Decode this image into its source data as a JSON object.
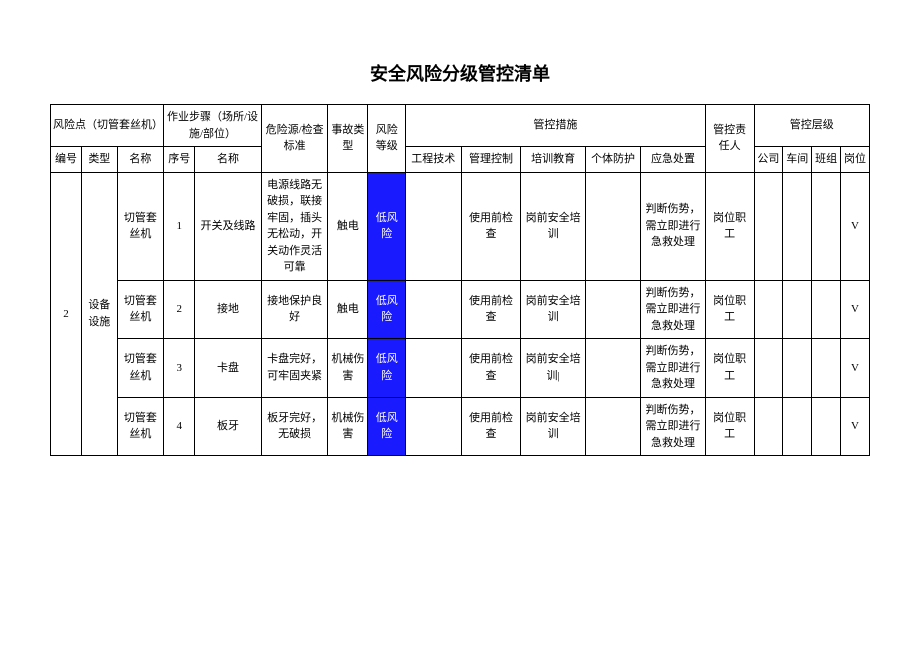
{
  "title": "安全风险分级管控清单",
  "headers": {
    "risk_point": "风险点（切管套丝机）",
    "steps": "作业步骤（场所/设施/部位）",
    "hazard": "危险源/检查标准",
    "accident": "事故类型",
    "risk_level": "风险等级",
    "measures": "管控措施",
    "responsible": "管控责任人",
    "ctrl_level": "管控层级",
    "num": "编号",
    "type": "类型",
    "name": "名称",
    "seq": "序号",
    "step_name": "名称",
    "eng": "工程技术",
    "mgmt": "管理控制",
    "train": "培训教育",
    "ppe": "个体防护",
    "emerg": "应急处置",
    "company": "公司",
    "workshop": "车间",
    "team": "班组",
    "post": "岗位"
  },
  "group": {
    "num": "2",
    "type": "设备设施"
  },
  "rows": [
    {
      "name": "切管套丝机",
      "seq": "1",
      "step": "开关及线路",
      "hazard": "电源线路无破损，联接牢固，插头无松动，开关动作灵活可靠",
      "accident": "触电",
      "risk": "低风险",
      "eng": "",
      "mgmt": "使用前检查",
      "train": "岗前安全培训",
      "ppe": "",
      "emerg": "判断伤势，需立即进行急救处理",
      "resp": "岗位职工",
      "company": "",
      "workshop": "",
      "team": "",
      "post": "V"
    },
    {
      "name": "切管套丝机",
      "seq": "2",
      "step": "接地",
      "hazard": "接地保护良好",
      "accident": "触电",
      "risk": "低风险",
      "eng": "",
      "mgmt": "使用前检查",
      "train": "岗前安全培训",
      "ppe": "",
      "emerg": "判断伤势，需立即进行急救处理",
      "resp": "岗位职工",
      "company": "",
      "workshop": "",
      "team": "",
      "post": "V"
    },
    {
      "name": "切管套丝机",
      "seq": "3",
      "step": "卡盘",
      "hazard": "卡盘完好，可牢固夹紧",
      "accident": "机械伤害",
      "risk": "低风险",
      "eng": "",
      "mgmt": "使用前检查",
      "train": "岗前安全培训|",
      "ppe": "",
      "emerg": "判断伤势，需立即进行急救处理",
      "resp": "岗位职工",
      "company": "",
      "workshop": "",
      "team": "",
      "post": "V"
    },
    {
      "name": "切管套丝机",
      "seq": "4",
      "step": "板牙",
      "hazard": "板牙完好，无破损",
      "accident": "机械伤害",
      "risk": "低风险",
      "eng": "",
      "mgmt": "使用前检查",
      "train": "岗前安全培训",
      "ppe": "",
      "emerg": "判断伤势，需立即进行急救处理",
      "resp": "岗位职工",
      "company": "",
      "workshop": "",
      "team": "",
      "post": "V"
    }
  ]
}
